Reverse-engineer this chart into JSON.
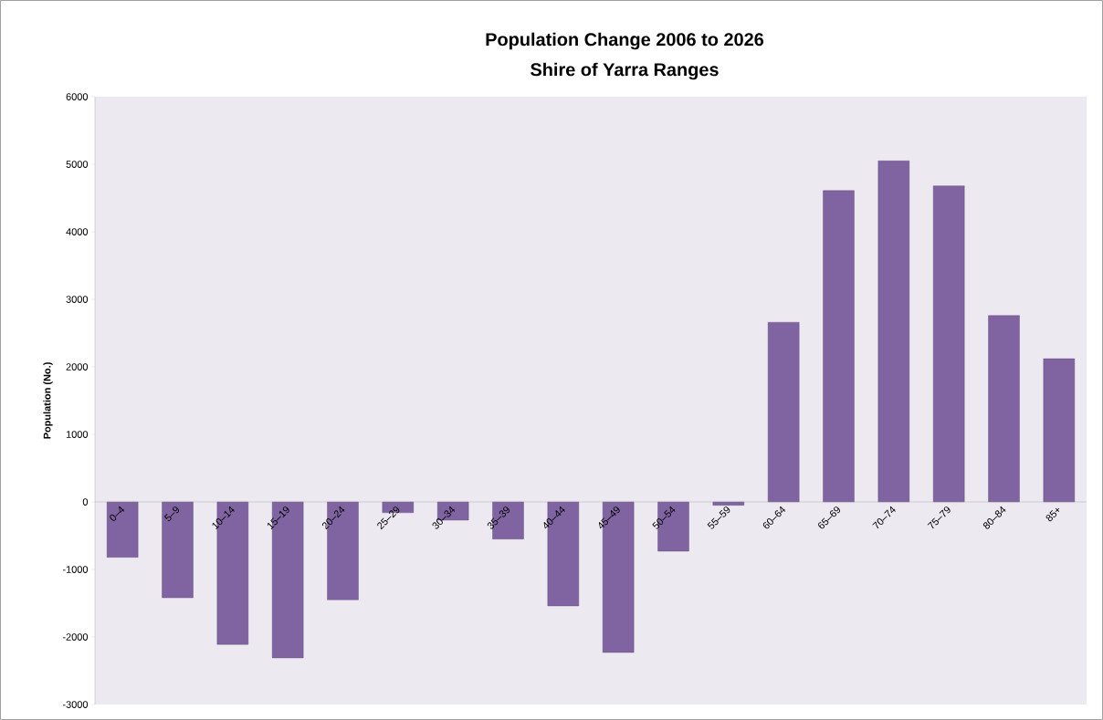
{
  "chart_data": {
    "type": "bar",
    "title": "Population Change 2006 to 2026",
    "subtitle": "Shire of Yarra Ranges",
    "ylabel": "Population (No.)",
    "categories": [
      "0–4",
      "5–9",
      "10–14",
      "15–19",
      "20–24",
      "25–29",
      "30–34",
      "35–39",
      "40–44",
      "45–49",
      "50–54",
      "55–59",
      "60–64",
      "65–69",
      "70–74",
      "75–79",
      "80–84",
      "85+"
    ],
    "values": [
      -820,
      -1420,
      -2110,
      -2310,
      -1450,
      -160,
      -270,
      -550,
      -1540,
      -2230,
      -730,
      -50,
      2660,
      4610,
      5050,
      4680,
      2760,
      2120
    ],
    "color": "#8064a2",
    "ylim": [
      -3000,
      6000
    ],
    "yticks": [
      -3000,
      -2000,
      -1000,
      0,
      1000,
      2000,
      3000,
      4000,
      5000,
      6000
    ]
  }
}
